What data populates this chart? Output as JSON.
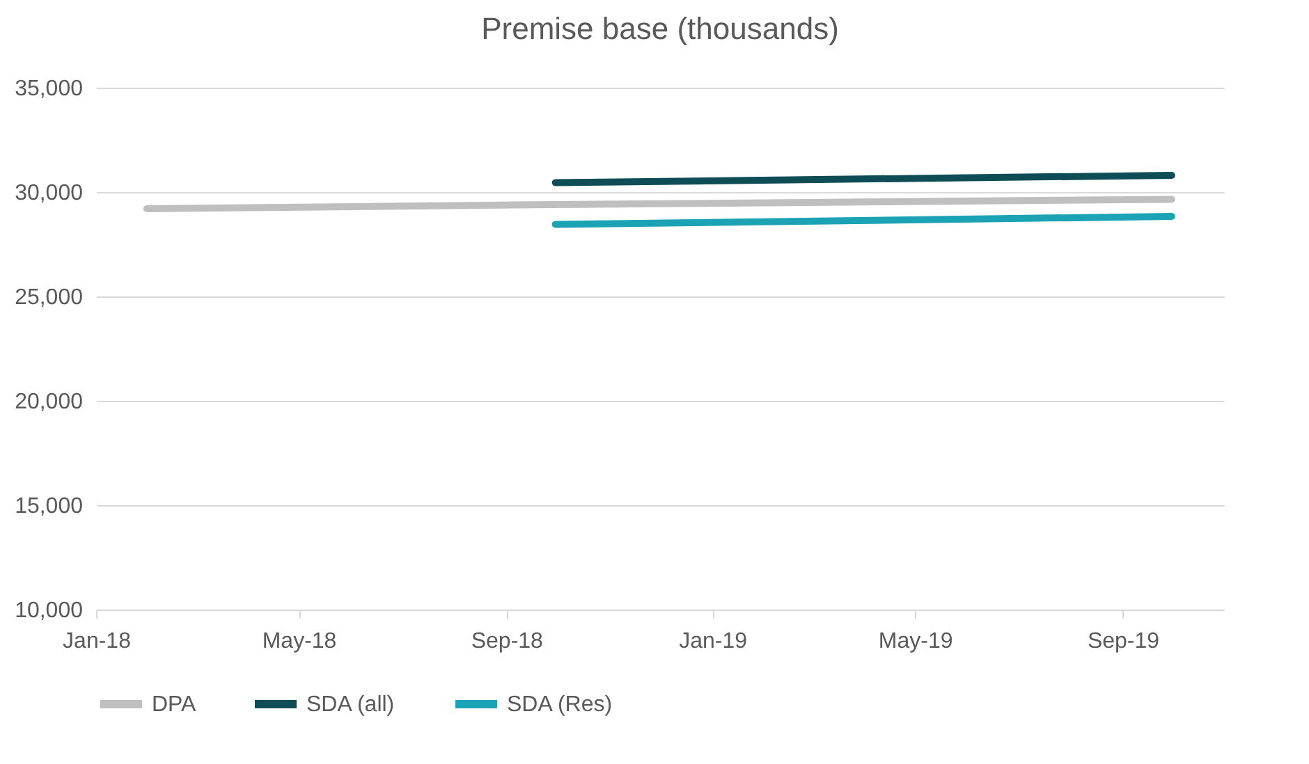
{
  "chart_data": {
    "type": "line",
    "title": "Premise base (thousands)",
    "xlim": [
      "2018-01-01",
      "2019-10-31"
    ],
    "xticks": [
      {
        "value": "2018-01-01",
        "label": "Jan-18"
      },
      {
        "value": "2018-05-01",
        "label": "May-18"
      },
      {
        "value": "2018-09-01",
        "label": "Sep-18"
      },
      {
        "value": "2019-01-01",
        "label": "Jan-19"
      },
      {
        "value": "2019-05-01",
        "label": "May-19"
      },
      {
        "value": "2019-09-01",
        "label": "Sep-19"
      }
    ],
    "ylim": [
      10000,
      35000
    ],
    "yticks": [
      {
        "value": 10000,
        "label": "10,000"
      },
      {
        "value": 15000,
        "label": "15,000"
      },
      {
        "value": 20000,
        "label": "20,000"
      },
      {
        "value": 25000,
        "label": "25,000"
      },
      {
        "value": 30000,
        "label": "30,000"
      },
      {
        "value": 35000,
        "label": "35,000"
      }
    ],
    "grid": "y",
    "legend": "bottom",
    "marker": "none",
    "line_style": "solid",
    "series": [
      {
        "name": "DPA",
        "color": "#bfbfbf",
        "x": [
          "2018-01-31",
          "2018-09-30",
          "2019-09-30"
        ],
        "values": [
          29200,
          29400,
          29650
        ]
      },
      {
        "name": "SDA (all)",
        "color": "#0e4d55",
        "x": [
          "2018-09-30",
          "2019-09-30"
        ],
        "values": [
          30450,
          30800
        ]
      },
      {
        "name": "SDA (Res)",
        "color": "#1ba3b5",
        "x": [
          "2018-09-30",
          "2019-09-30"
        ],
        "values": [
          28450,
          28830
        ]
      }
    ]
  }
}
